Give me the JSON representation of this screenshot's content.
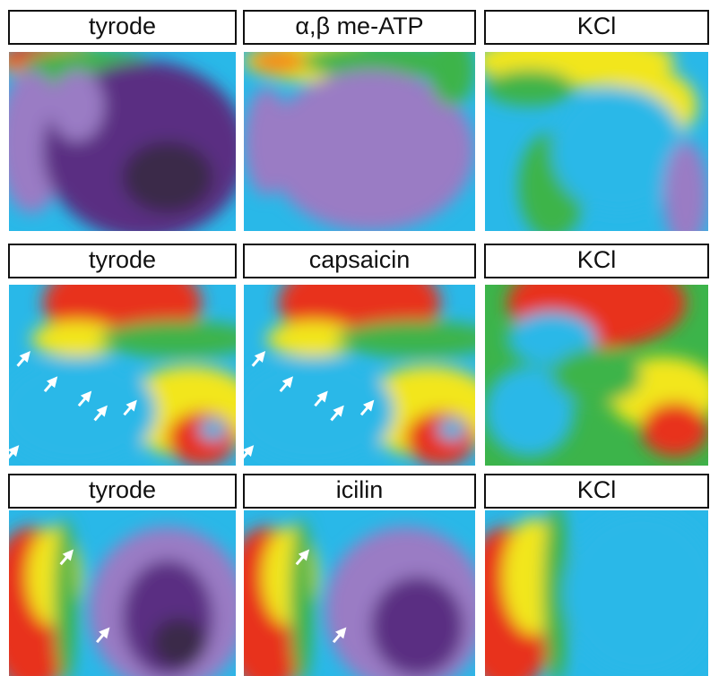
{
  "rows": [
    {
      "labels": [
        "tyrode",
        "α,β me-ATP",
        "KCl"
      ]
    },
    {
      "labels": [
        "tyrode",
        "capsaicin",
        "KCl"
      ]
    },
    {
      "labels": [
        "tyrode",
        "icilin",
        "KCl"
      ]
    }
  ]
}
